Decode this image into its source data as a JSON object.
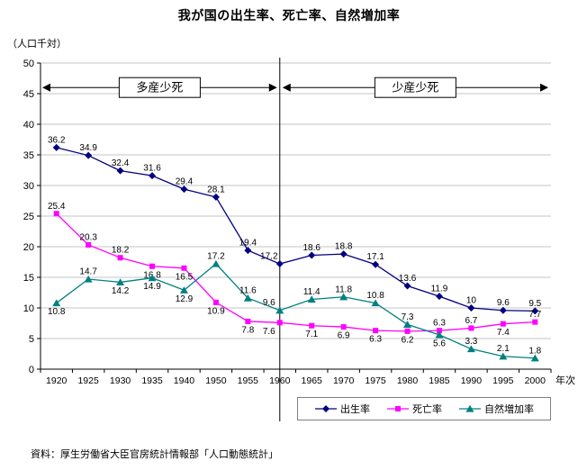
{
  "chart_data": {
    "type": "line",
    "title": "我が国の出生率、死亡率、自然増加率",
    "unit_label": "（人口千対）",
    "x_axis_label": "年次",
    "source": "資料：厚生労働省大臣官房統計情報部「人口動態統計」",
    "ylim": [
      0,
      50
    ],
    "y_tick_step": 5,
    "grid": "horizontal-only",
    "legend_position": "bottom-right-boxed",
    "x": [
      "1920",
      "1925",
      "1930",
      "1935",
      "1940",
      "1950",
      "1955",
      "1960",
      "1965",
      "1970",
      "1975",
      "1980",
      "1985",
      "1990",
      "1995",
      "2000"
    ],
    "divider_x": "1960",
    "annotations": [
      {
        "label": "多産少死",
        "span": "left"
      },
      {
        "label": "少産少死",
        "span": "right"
      }
    ],
    "series": [
      {
        "name": "出生率",
        "color": "#000080",
        "marker": "diamond",
        "values": [
          36.2,
          34.9,
          32.4,
          31.6,
          29.4,
          28.1,
          19.4,
          17.2,
          18.6,
          18.8,
          17.1,
          13.6,
          11.9,
          10,
          9.6,
          9.5
        ],
        "label_side": [
          "above",
          "above",
          "above",
          "above",
          "above",
          "above",
          "above",
          "above",
          "above",
          "above",
          "above",
          "above",
          "above",
          "above",
          "above",
          "above"
        ]
      },
      {
        "name": "死亡率",
        "color": "#FF00FF",
        "marker": "square",
        "values": [
          25.4,
          20.3,
          18.2,
          16.8,
          16.5,
          10.9,
          7.8,
          7.6,
          7.1,
          6.9,
          6.3,
          6.2,
          6.3,
          6.7,
          7.4,
          7.7
        ],
        "label_side": [
          "above",
          "above",
          "above",
          "below",
          "below",
          "below",
          "below",
          "below",
          "below",
          "below",
          "below",
          "below",
          "above",
          "above",
          "below",
          "above"
        ]
      },
      {
        "name": "自然増加率",
        "color": "#008080",
        "marker": "triangle",
        "values": [
          10.8,
          14.7,
          14.2,
          14.9,
          12.9,
          17.2,
          11.6,
          9.6,
          11.4,
          11.8,
          10.8,
          7.3,
          5.6,
          3.3,
          2.1,
          1.8
        ],
        "label_side": [
          "below",
          "above",
          "below",
          "below",
          "below",
          "above",
          "above",
          "above",
          "above",
          "above",
          "above",
          "above",
          "below",
          "above",
          "above",
          "above"
        ]
      }
    ]
  }
}
